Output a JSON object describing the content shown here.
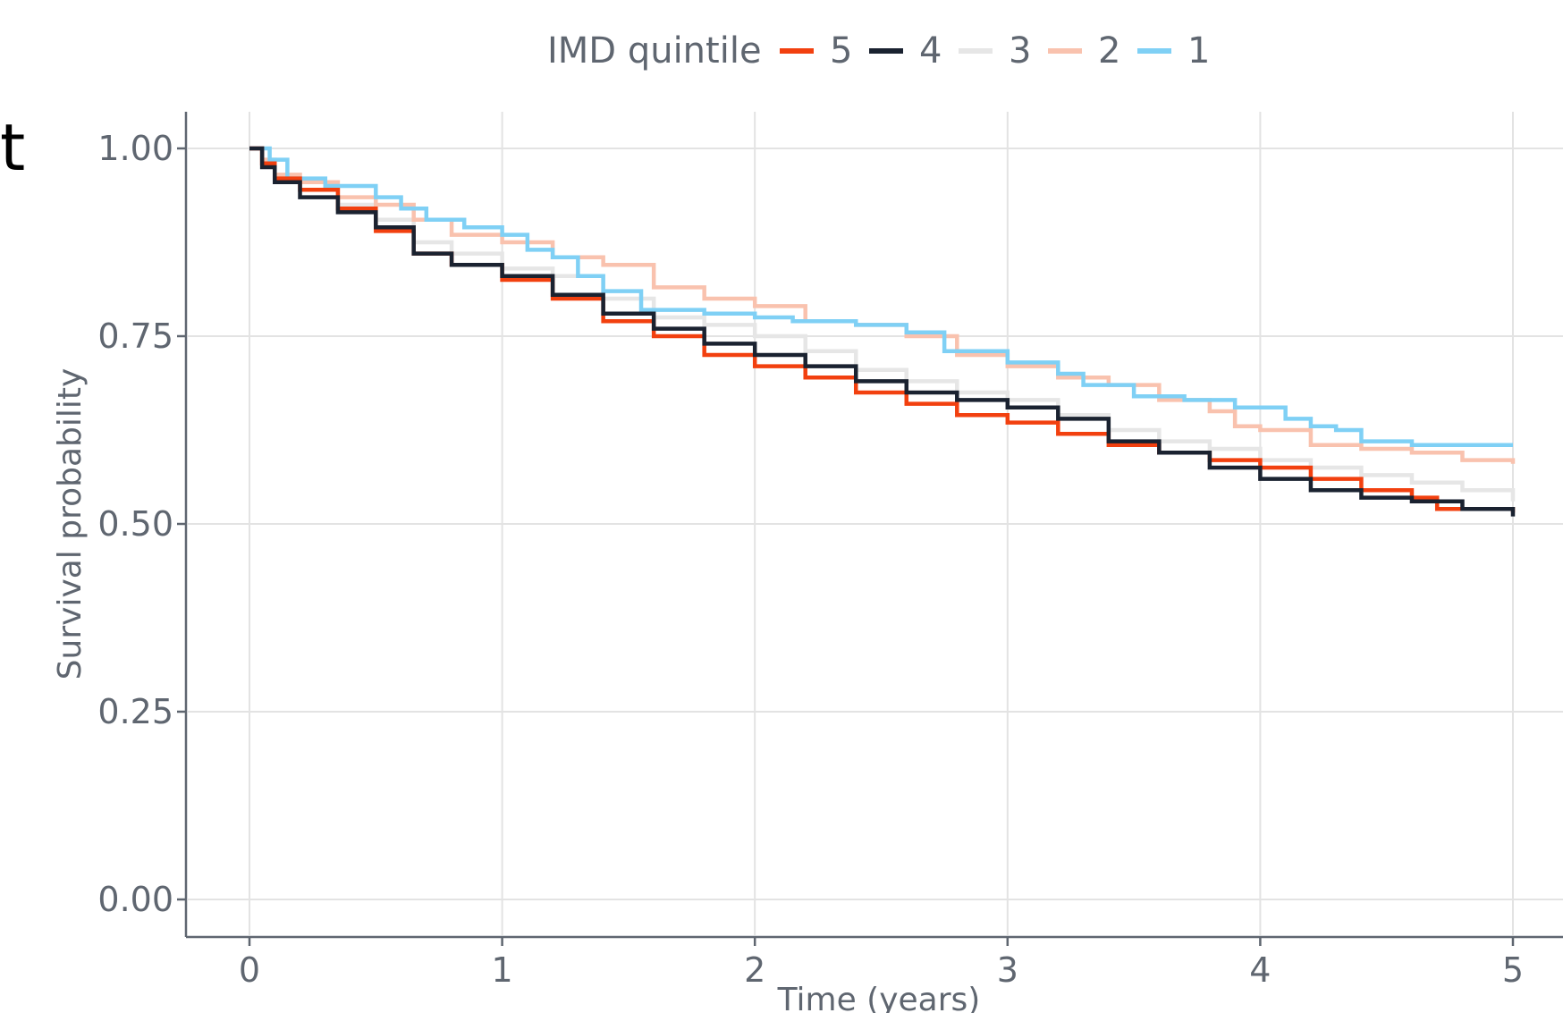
{
  "chart_data": {
    "type": "line",
    "panel_letter": "t",
    "xlabel": "Time (years)",
    "ylabel": "Survival probability",
    "xlim": [
      -0.25,
      5.2
    ],
    "ylim": [
      -0.05,
      1.05
    ],
    "x_ticks": [
      0,
      1,
      2,
      3,
      4,
      5
    ],
    "x_tick_labels": [
      "0",
      "1",
      "2",
      "3",
      "4",
      "5"
    ],
    "y_ticks": [
      0,
      0.25,
      0.5,
      0.75,
      1
    ],
    "y_tick_labels": [
      "0.00",
      "0.25",
      "0.50",
      "0.75",
      "1.00"
    ],
    "grid": true,
    "legend": {
      "title": "IMD quintile",
      "position": "top"
    },
    "series": [
      {
        "name": "5",
        "color": "#F2400F",
        "x": [
          0,
          0.05,
          0.1,
          0.2,
          0.35,
          0.5,
          0.65,
          0.8,
          1.0,
          1.2,
          1.4,
          1.6,
          1.8,
          2.0,
          2.2,
          2.4,
          2.6,
          2.8,
          3.0,
          3.2,
          3.4,
          3.6,
          3.8,
          4.0,
          4.2,
          4.4,
          4.6,
          4.7,
          5.0
        ],
        "y": [
          1.0,
          0.98,
          0.96,
          0.945,
          0.92,
          0.89,
          0.86,
          0.845,
          0.825,
          0.8,
          0.77,
          0.75,
          0.725,
          0.71,
          0.695,
          0.675,
          0.66,
          0.645,
          0.635,
          0.62,
          0.605,
          0.595,
          0.585,
          0.575,
          0.56,
          0.545,
          0.535,
          0.52,
          0.515
        ]
      },
      {
        "name": "4",
        "color": "#1A2230",
        "x": [
          0,
          0.05,
          0.1,
          0.2,
          0.35,
          0.5,
          0.65,
          0.8,
          1.0,
          1.2,
          1.4,
          1.6,
          1.8,
          2.0,
          2.2,
          2.4,
          2.6,
          2.8,
          3.0,
          3.2,
          3.4,
          3.6,
          3.8,
          4.0,
          4.2,
          4.4,
          4.6,
          4.8,
          5.0
        ],
        "y": [
          1.0,
          0.975,
          0.955,
          0.935,
          0.915,
          0.895,
          0.86,
          0.845,
          0.83,
          0.805,
          0.78,
          0.76,
          0.74,
          0.725,
          0.71,
          0.69,
          0.675,
          0.665,
          0.655,
          0.64,
          0.61,
          0.595,
          0.575,
          0.56,
          0.545,
          0.535,
          0.53,
          0.52,
          0.51
        ]
      },
      {
        "name": "3",
        "color": "#E6E6E6",
        "x": [
          0,
          0.05,
          0.1,
          0.2,
          0.35,
          0.5,
          0.65,
          0.8,
          1.0,
          1.2,
          1.4,
          1.6,
          1.8,
          2.0,
          2.2,
          2.4,
          2.6,
          2.8,
          3.0,
          3.2,
          3.4,
          3.6,
          3.8,
          4.0,
          4.2,
          4.4,
          4.6,
          4.8,
          5.0
        ],
        "y": [
          1.0,
          0.98,
          0.96,
          0.945,
          0.925,
          0.905,
          0.875,
          0.86,
          0.84,
          0.83,
          0.8,
          0.775,
          0.765,
          0.75,
          0.73,
          0.705,
          0.69,
          0.675,
          0.665,
          0.645,
          0.625,
          0.61,
          0.6,
          0.585,
          0.575,
          0.565,
          0.555,
          0.545,
          0.53
        ]
      },
      {
        "name": "2",
        "color": "#F9C2AE",
        "x": [
          0,
          0.05,
          0.1,
          0.2,
          0.35,
          0.5,
          0.65,
          0.8,
          1.0,
          1.2,
          1.4,
          1.6,
          1.8,
          2.0,
          2.2,
          2.4,
          2.6,
          2.8,
          3.0,
          3.2,
          3.4,
          3.6,
          3.8,
          3.9,
          4.0,
          4.2,
          4.4,
          4.6,
          4.8,
          5.0
        ],
        "y": [
          1.0,
          0.985,
          0.965,
          0.955,
          0.935,
          0.925,
          0.905,
          0.885,
          0.875,
          0.855,
          0.845,
          0.815,
          0.8,
          0.79,
          0.77,
          0.765,
          0.75,
          0.725,
          0.71,
          0.695,
          0.685,
          0.665,
          0.65,
          0.63,
          0.625,
          0.605,
          0.6,
          0.595,
          0.585,
          0.58
        ]
      },
      {
        "name": "1",
        "color": "#7FD0F5",
        "x": [
          0,
          0.08,
          0.15,
          0.3,
          0.5,
          0.6,
          0.7,
          0.85,
          1.0,
          1.1,
          1.2,
          1.3,
          1.4,
          1.55,
          1.8,
          2.0,
          2.15,
          2.4,
          2.6,
          2.75,
          3.0,
          3.2,
          3.3,
          3.5,
          3.7,
          3.9,
          4.1,
          4.2,
          4.3,
          4.4,
          4.6,
          5.0
        ],
        "y": [
          1.0,
          0.985,
          0.96,
          0.95,
          0.935,
          0.92,
          0.905,
          0.895,
          0.885,
          0.865,
          0.855,
          0.83,
          0.81,
          0.785,
          0.78,
          0.775,
          0.77,
          0.765,
          0.755,
          0.73,
          0.715,
          0.7,
          0.685,
          0.67,
          0.665,
          0.655,
          0.64,
          0.63,
          0.625,
          0.61,
          0.605,
          0.605
        ]
      }
    ]
  }
}
